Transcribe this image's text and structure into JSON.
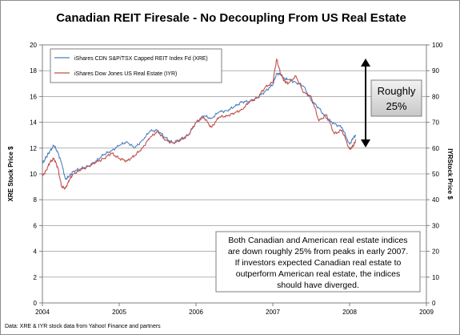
{
  "chart_data": {
    "type": "line",
    "title": "Canadian REIT Firesale - No Decoupling From US Real Estate",
    "xlabel": "",
    "ylabel_left": "XRE Stock Price $",
    "ylabel_right": "IYRStock Price $",
    "xlim": [
      2004,
      2009
    ],
    "ylim_left": [
      0,
      20
    ],
    "ylim_right": [
      0,
      100
    ],
    "x_ticks": [
      "2004",
      "2005",
      "2006",
      "2007",
      "2008",
      "2009"
    ],
    "y_ticks_left": [
      "0",
      "2",
      "4",
      "6",
      "8",
      "10",
      "12",
      "14",
      "16",
      "18",
      "20"
    ],
    "y_ticks_right": [
      "0",
      "10",
      "20",
      "30",
      "40",
      "50",
      "60",
      "70",
      "80",
      "90",
      "100"
    ],
    "grid": true,
    "legend_position": "top-left",
    "series": [
      {
        "name": "iShares CDN S&P/TSX Capped REIT Index Fd (XRE)",
        "axis": "left",
        "color": "#4f81bd",
        "x": [
          2004.0,
          2004.05,
          2004.1,
          2004.15,
          2004.2,
          2004.25,
          2004.3,
          2004.35,
          2004.4,
          2004.5,
          2004.6,
          2004.7,
          2004.8,
          2004.9,
          2005.0,
          2005.1,
          2005.2,
          2005.3,
          2005.4,
          2005.5,
          2005.6,
          2005.7,
          2005.8,
          2005.9,
          2006.0,
          2006.1,
          2006.2,
          2006.3,
          2006.4,
          2006.5,
          2006.6,
          2006.7,
          2006.8,
          2006.9,
          2007.0,
          2007.05,
          2007.1,
          2007.15,
          2007.2,
          2007.3,
          2007.4,
          2007.5,
          2007.6,
          2007.7,
          2007.8,
          2007.9,
          2008.0,
          2008.05,
          2008.08
        ],
        "values": [
          10.8,
          11.3,
          11.8,
          12.2,
          11.7,
          10.8,
          9.6,
          9.8,
          10.2,
          10.4,
          10.6,
          11.0,
          11.5,
          11.8,
          12.2,
          12.5,
          12.0,
          12.6,
          13.3,
          13.4,
          12.8,
          12.4,
          12.7,
          13.0,
          14.0,
          14.5,
          14.3,
          14.8,
          14.9,
          15.2,
          15.6,
          15.6,
          15.9,
          16.4,
          16.9,
          17.8,
          17.7,
          17.4,
          17.3,
          17.1,
          16.8,
          15.7,
          15.1,
          14.3,
          13.9,
          13.6,
          12.3,
          12.8,
          13.0
        ]
      },
      {
        "name": "iShares Dow Jones US Real Estate (IYR)",
        "axis": "right",
        "color": "#c0504d",
        "x": [
          2004.0,
          2004.05,
          2004.1,
          2004.15,
          2004.2,
          2004.25,
          2004.3,
          2004.35,
          2004.4,
          2004.5,
          2004.6,
          2004.7,
          2004.8,
          2004.9,
          2005.0,
          2005.1,
          2005.2,
          2005.3,
          2005.4,
          2005.5,
          2005.6,
          2005.7,
          2005.8,
          2005.9,
          2006.0,
          2006.1,
          2006.2,
          2006.3,
          2006.4,
          2006.5,
          2006.6,
          2006.7,
          2006.8,
          2006.9,
          2007.0,
          2007.05,
          2007.1,
          2007.15,
          2007.2,
          2007.3,
          2007.4,
          2007.5,
          2007.6,
          2007.7,
          2007.8,
          2007.9,
          2008.0,
          2008.05,
          2008.08
        ],
        "values": [
          49.0,
          51.5,
          54.5,
          56.0,
          52.5,
          45.0,
          44.5,
          47.5,
          50.0,
          51.5,
          53.0,
          54.5,
          56.0,
          58.0,
          56.0,
          55.0,
          57.0,
          60.0,
          64.0,
          66.5,
          63.0,
          62.0,
          63.0,
          65.0,
          70.0,
          72.0,
          68.0,
          72.0,
          72.5,
          73.5,
          75.0,
          78.0,
          79.5,
          83.5,
          85.5,
          94.5,
          89.0,
          86.0,
          85.0,
          88.0,
          81.5,
          80.0,
          70.5,
          73.0,
          65.5,
          67.0,
          59.5,
          61.0,
          63.0
        ]
      }
    ],
    "callout": {
      "lines": [
        "Roughly",
        "25%"
      ]
    },
    "annotation": {
      "lines": [
        "Both Canadian and American real estate indices",
        "are down roughly 25% from peaks in early 2007.",
        "If investors expected Canadian real estate to",
        "outperform American real estate, the indices",
        "should have diverged."
      ]
    },
    "source": "Data: XRE & IYR stock data from Yahoo! Finance and partners"
  }
}
